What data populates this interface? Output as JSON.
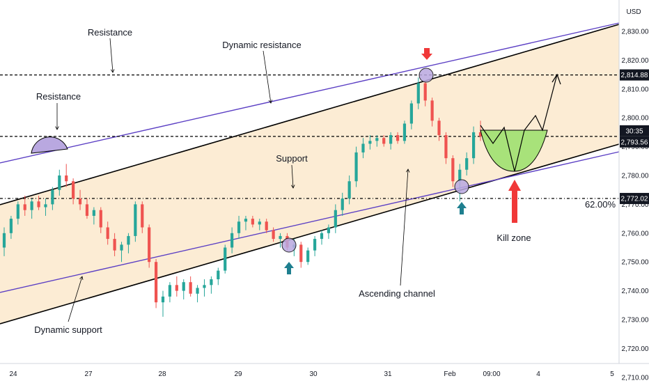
{
  "chart_data": {
    "type": "candlestick",
    "currency": "USD",
    "y_ticks": [
      2710,
      2720,
      2730,
      2740,
      2750,
      2760,
      2770,
      2780,
      2790,
      2800,
      2810,
      2820,
      2830
    ],
    "ylim": [
      2707,
      2834
    ],
    "x_ticks": [
      "24",
      "27",
      "28",
      "29",
      "30",
      "31",
      "Feb",
      "09:00",
      "4",
      "5"
    ],
    "price_tags": {
      "upper_level": "2,814.88",
      "current_countdown": "30:35",
      "current_price": "2,793.56",
      "lower_level": "2,772.02"
    },
    "horizontal_levels": [
      2814.88,
      2793.56,
      2772.02
    ],
    "fib_label": "62.00%",
    "annotations": {
      "resistance_top": "Resistance",
      "dynamic_resistance": "Dynamic resistance",
      "resistance_left": "Resistance",
      "support": "Support",
      "ascending_channel": "Ascending channel",
      "dynamic_support": "Dynamic support",
      "kill_zone": "Kill zone"
    },
    "colors": {
      "up": "#26a69a",
      "down": "#ef5350",
      "channel_fill": "#fbe9cc",
      "channel_line": "#000000",
      "dynamic_line": "#5b3fc4",
      "circle_fill": "#b9a8e0",
      "green_zone": "#a8e27a",
      "red_arrow": "#f03838",
      "teal_arrow": "#1e7f8f"
    },
    "candles": [
      [
        2755,
        2762,
        2752,
        2760
      ],
      [
        2760,
        2766,
        2758,
        2765
      ],
      [
        2765,
        2771,
        2763,
        2770
      ],
      [
        2770,
        2773,
        2766,
        2768
      ],
      [
        2768,
        2772,
        2765,
        2771
      ],
      [
        2771,
        2773,
        2768,
        2769
      ],
      [
        2769,
        2772,
        2766,
        2770
      ],
      [
        2770,
        2776,
        2768,
        2775
      ],
      [
        2775,
        2782,
        2773,
        2780
      ],
      [
        2780,
        2784,
        2776,
        2778
      ],
      [
        2778,
        2779,
        2770,
        2772
      ],
      [
        2772,
        2775,
        2768,
        2770
      ],
      [
        2770,
        2772,
        2765,
        2766
      ],
      [
        2766,
        2769,
        2763,
        2768
      ],
      [
        2768,
        2769,
        2760,
        2762
      ],
      [
        2762,
        2764,
        2756,
        2758
      ],
      [
        2758,
        2760,
        2752,
        2754
      ],
      [
        2754,
        2757,
        2750,
        2756
      ],
      [
        2756,
        2760,
        2753,
        2759
      ],
      [
        2759,
        2771,
        2757,
        2770
      ],
      [
        2770,
        2771,
        2760,
        2762
      ],
      [
        2762,
        2763,
        2748,
        2750
      ],
      [
        2750,
        2751,
        2734,
        2736
      ],
      [
        2736,
        2740,
        2731,
        2738
      ],
      [
        2738,
        2743,
        2736,
        2742
      ],
      [
        2742,
        2745,
        2738,
        2740
      ],
      [
        2740,
        2744,
        2737,
        2743
      ],
      [
        2743,
        2745,
        2738,
        2739
      ],
      [
        2739,
        2742,
        2736,
        2741
      ],
      [
        2741,
        2744,
        2738,
        2742
      ],
      [
        2742,
        2745,
        2739,
        2744
      ],
      [
        2744,
        2748,
        2742,
        2747
      ],
      [
        2747,
        2756,
        2746,
        2755
      ],
      [
        2755,
        2762,
        2753,
        2760
      ],
      [
        2760,
        2766,
        2758,
        2764
      ],
      [
        2764,
        2766,
        2761,
        2765
      ],
      [
        2765,
        2766,
        2762,
        2763
      ],
      [
        2763,
        2765,
        2761,
        2764
      ],
      [
        2764,
        2765,
        2760,
        2761
      ],
      [
        2761,
        2762,
        2757,
        2758
      ],
      [
        2758,
        2760,
        2755,
        2759
      ],
      [
        2759,
        2760,
        2754,
        2755
      ],
      [
        2755,
        2758,
        2752,
        2756
      ],
      [
        2756,
        2757,
        2748,
        2750
      ],
      [
        2750,
        2755,
        2749,
        2754
      ],
      [
        2754,
        2759,
        2752,
        2758
      ],
      [
        2758,
        2761,
        2756,
        2760
      ],
      [
        2760,
        2763,
        2758,
        2762
      ],
      [
        2762,
        2770,
        2760,
        2768
      ],
      [
        2768,
        2774,
        2766,
        2772
      ],
      [
        2772,
        2780,
        2770,
        2778
      ],
      [
        2778,
        2790,
        2776,
        2788
      ],
      [
        2788,
        2793,
        2786,
        2791
      ],
      [
        2791,
        2794,
        2789,
        2792
      ],
      [
        2792,
        2794,
        2790,
        2793
      ],
      [
        2793,
        2794,
        2790,
        2791
      ],
      [
        2791,
        2795,
        2789,
        2794
      ],
      [
        2794,
        2795,
        2791,
        2792
      ],
      [
        2792,
        2799,
        2791,
        2798
      ],
      [
        2798,
        2806,
        2796,
        2805
      ],
      [
        2805,
        2814,
        2803,
        2812
      ],
      [
        2812,
        2813,
        2804,
        2806
      ],
      [
        2806,
        2807,
        2797,
        2799
      ],
      [
        2799,
        2800,
        2792,
        2794
      ],
      [
        2794,
        2795,
        2784,
        2786
      ],
      [
        2786,
        2787,
        2776,
        2778
      ],
      [
        2778,
        2784,
        2771,
        2782
      ],
      [
        2782,
        2788,
        2780,
        2786
      ],
      [
        2786,
        2797,
        2784,
        2795
      ],
      [
        2795,
        2799,
        2792,
        2793.56
      ]
    ]
  }
}
